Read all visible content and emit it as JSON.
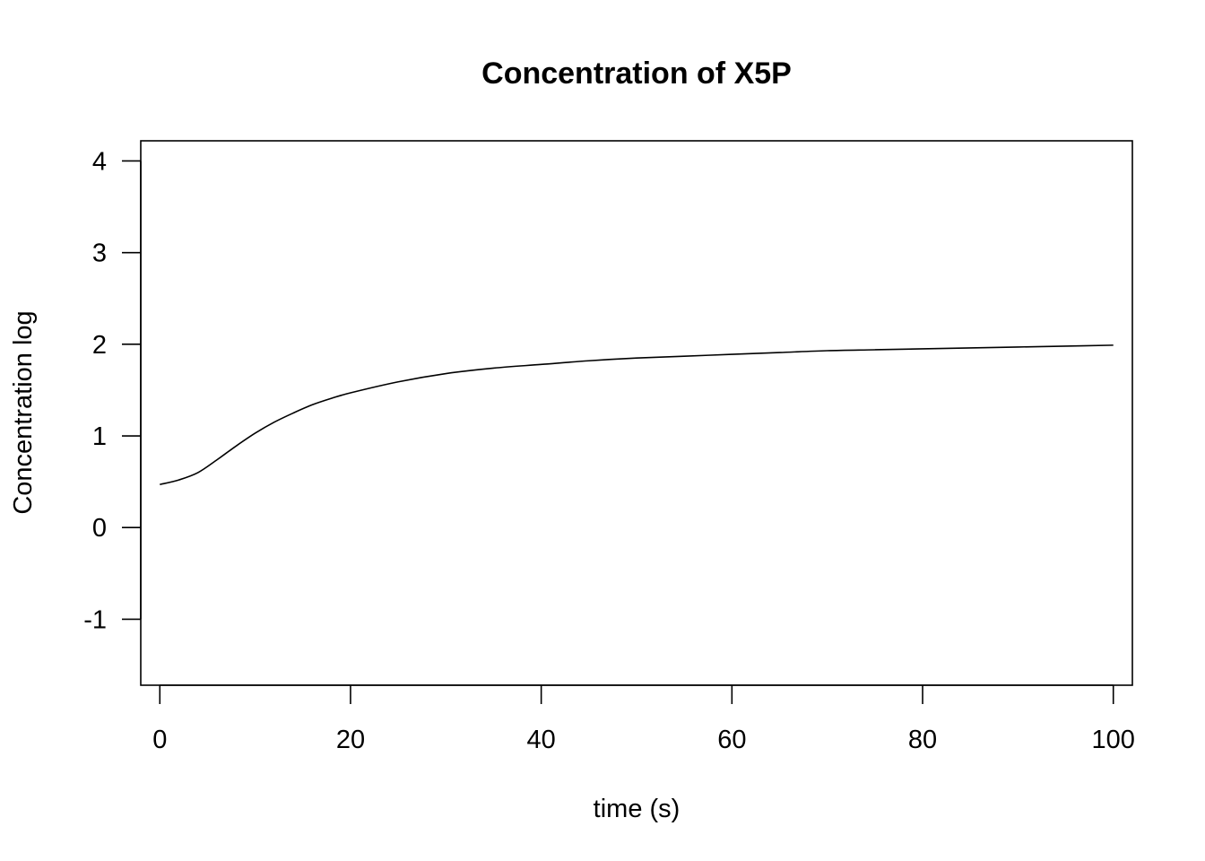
{
  "chart_data": {
    "type": "line",
    "title": "Concentration of X5P",
    "xlabel": "time (s)",
    "ylabel": "Concentration log",
    "xlim": [
      -2,
      102
    ],
    "ylim": [
      -1.72,
      4.22
    ],
    "x_ticks": [
      0,
      20,
      40,
      60,
      80,
      100
    ],
    "x_tick_labels": [
      "0",
      "20",
      "40",
      "60",
      "80",
      "100"
    ],
    "y_ticks": [
      -1,
      0,
      1,
      2,
      3,
      4
    ],
    "y_tick_labels": [
      "-1",
      "0",
      "1",
      "2",
      "3",
      "4"
    ],
    "grid": false,
    "legend": "none",
    "line_color": "#000000",
    "series": [
      {
        "x": [
          0,
          2,
          4,
          6,
          8,
          10,
          12,
          14,
          16,
          18,
          20,
          25,
          30,
          35,
          40,
          45,
          50,
          55,
          60,
          65,
          70,
          75,
          80,
          85,
          90,
          95,
          100
        ],
        "y": [
          0.47,
          0.52,
          0.6,
          0.74,
          0.89,
          1.03,
          1.15,
          1.25,
          1.34,
          1.41,
          1.47,
          1.59,
          1.68,
          1.74,
          1.78,
          1.82,
          1.85,
          1.87,
          1.89,
          1.91,
          1.93,
          1.94,
          1.95,
          1.96,
          1.97,
          1.98,
          1.99
        ]
      }
    ]
  }
}
